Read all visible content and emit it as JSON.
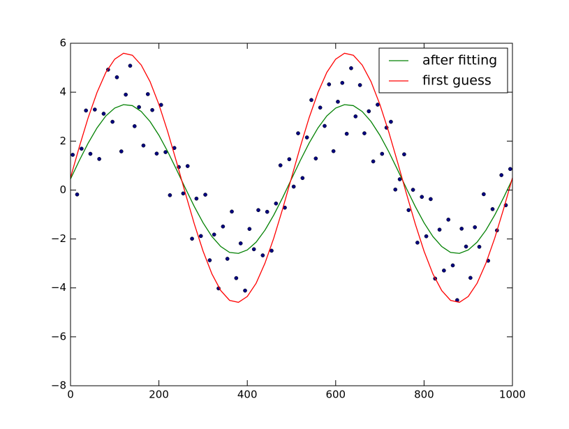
{
  "chart_data": {
    "type": "scatter",
    "xlim": [
      0,
      1000
    ],
    "ylim": [
      -8,
      6
    ],
    "xticks": [
      0,
      200,
      400,
      600,
      800,
      1000
    ],
    "yticks": [
      -8,
      -6,
      -4,
      -2,
      0,
      2,
      4,
      6
    ],
    "legend": "upper right",
    "series": [
      {
        "name": "after fitting",
        "type": "line",
        "color": "#008000",
        "x": [
          0,
          20,
          40,
          60,
          80,
          100,
          120,
          140,
          160,
          180,
          200,
          220,
          240,
          260,
          280,
          300,
          320,
          340,
          360,
          380,
          400,
          420,
          440,
          460,
          480,
          500,
          520,
          540,
          560,
          580,
          600,
          620,
          640,
          660,
          680,
          700,
          720,
          740,
          760,
          780,
          800,
          820,
          840,
          860,
          880,
          900,
          920,
          940,
          960,
          980,
          1000
        ],
        "values": [
          0.45,
          1.21,
          1.92,
          2.54,
          3.03,
          3.35,
          3.49,
          3.45,
          3.21,
          2.8,
          2.24,
          1.57,
          0.83,
          0.07,
          -0.67,
          -1.34,
          -1.9,
          -2.31,
          -2.55,
          -2.59,
          -2.45,
          -2.13,
          -1.64,
          -1.02,
          -0.31,
          0.45,
          1.21,
          1.92,
          2.54,
          3.03,
          3.35,
          3.49,
          3.45,
          3.21,
          2.8,
          2.24,
          1.57,
          0.83,
          0.07,
          -0.67,
          -1.34,
          -1.9,
          -2.31,
          -2.55,
          -2.59,
          -2.45,
          -2.13,
          -1.64,
          -1.02,
          -0.31,
          0.45
        ]
      },
      {
        "name": "first guess",
        "type": "line",
        "color": "#ff0000",
        "x": [
          0,
          20,
          40,
          60,
          80,
          100,
          120,
          140,
          160,
          180,
          200,
          220,
          240,
          260,
          280,
          300,
          320,
          340,
          360,
          380,
          400,
          420,
          440,
          460,
          480,
          500,
          520,
          540,
          560,
          580,
          600,
          620,
          640,
          660,
          680,
          700,
          720,
          740,
          760,
          780,
          800,
          820,
          840,
          860,
          880,
          900,
          920,
          940,
          960,
          980,
          1000
        ],
        "values": [
          0.5,
          1.77,
          2.96,
          3.99,
          4.81,
          5.35,
          5.59,
          5.51,
          5.11,
          4.43,
          3.5,
          2.38,
          1.14,
          -0.14,
          -1.38,
          -2.5,
          -3.43,
          -4.11,
          -4.51,
          -4.59,
          -4.35,
          -3.81,
          -2.99,
          -1.96,
          -0.77,
          0.5,
          1.77,
          2.96,
          3.99,
          4.81,
          5.35,
          5.59,
          5.51,
          5.11,
          4.43,
          3.5,
          2.38,
          1.14,
          -0.14,
          -1.38,
          -2.5,
          -3.43,
          -4.11,
          -4.51,
          -4.59,
          -4.35,
          -3.81,
          -2.99,
          -1.96,
          -0.77,
          0.5
        ]
      },
      {
        "type": "scatter",
        "color": "#000080",
        "x": [
          5,
          15,
          25,
          35,
          45,
          55,
          65,
          75,
          85,
          95,
          105,
          115,
          125,
          135,
          145,
          155,
          165,
          175,
          185,
          195,
          205,
          215,
          225,
          235,
          245,
          255,
          265,
          275,
          285,
          295,
          305,
          315,
          325,
          335,
          345,
          355,
          365,
          375,
          385,
          395,
          405,
          415,
          425,
          435,
          445,
          455,
          465,
          475,
          485,
          495,
          505,
          515,
          525,
          535,
          545,
          555,
          565,
          575,
          585,
          595,
          605,
          615,
          625,
          635,
          645,
          655,
          665,
          675,
          685,
          695,
          705,
          715,
          725,
          735,
          745,
          755,
          765,
          775,
          785,
          795,
          805,
          815,
          825,
          835,
          845,
          855,
          865,
          875,
          885,
          895,
          905,
          915,
          925,
          935,
          945,
          955,
          965,
          975,
          985,
          995
        ],
        "values": [
          1.44,
          -0.18,
          1.69,
          3.25,
          1.48,
          3.29,
          1.27,
          3.12,
          4.92,
          2.79,
          4.61,
          1.58,
          3.9,
          5.08,
          2.61,
          3.39,
          1.82,
          3.92,
          3.27,
          1.49,
          3.48,
          1.55,
          -0.21,
          1.72,
          0.94,
          -0.14,
          0.98,
          -1.99,
          -0.35,
          -1.88,
          -0.19,
          -2.87,
          -1.82,
          -4.02,
          -1.49,
          -2.81,
          -0.88,
          -3.6,
          -2.18,
          -4.11,
          -1.59,
          -2.42,
          -0.82,
          -2.67,
          -0.89,
          -2.48,
          -0.55,
          1.01,
          -0.72,
          1.26,
          0.14,
          2.32,
          0.49,
          2.15,
          3.68,
          1.29,
          3.37,
          2.62,
          4.32,
          1.59,
          3.61,
          4.38,
          2.3,
          4.98,
          3.01,
          4.29,
          2.32,
          3.22,
          1.17,
          3.49,
          1.48,
          2.55,
          2.79,
          0.02,
          0.44,
          1.46,
          -0.82,
          0.01,
          -2.15,
          -0.28,
          -1.89,
          -0.37,
          -3.62,
          -1.62,
          -3.29,
          -1.21,
          -3.08,
          -4.5,
          -1.58,
          -2.31,
          -3.59,
          -1.52,
          -2.32,
          -0.17,
          -2.89,
          -0.78,
          -1.65,
          0.61,
          -0.62,
          0.86
        ]
      }
    ]
  }
}
